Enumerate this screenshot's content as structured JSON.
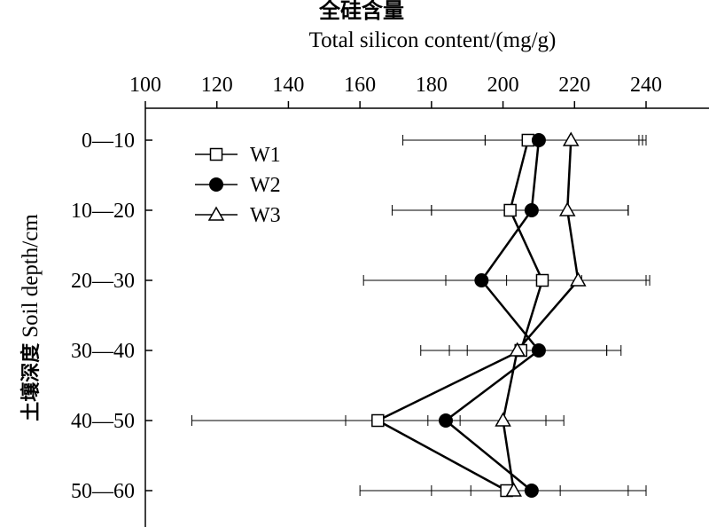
{
  "chart_data": {
    "type": "line",
    "title": "全硅含量",
    "xlabel": "Total silicon content/(mg/g)",
    "ylabel_cn": "土壤深度",
    "ylabel": "Soil depth/cm",
    "xlim": [
      100,
      250
    ],
    "xticks": [
      100,
      120,
      140,
      160,
      180,
      200,
      220,
      240
    ],
    "xtick_labels": [
      "100",
      "120",
      "140",
      "160",
      "180",
      "200",
      "220",
      "240"
    ],
    "categories": [
      "0—10",
      "10—20",
      "20—30",
      "30—40",
      "40—50",
      "50—60"
    ],
    "legend_position": "top-left",
    "grid": false,
    "series": [
      {
        "name": "W1",
        "marker": "open-square",
        "values": [
          207,
          202,
          211,
          205,
          165,
          201
        ],
        "err_low": [
          35,
          33,
          50,
          28,
          52,
          41
        ],
        "err_high": [
          31,
          33,
          29,
          24,
          23,
          34
        ]
      },
      {
        "name": "W2",
        "marker": "filled-circle",
        "values": [
          210,
          208,
          194,
          210,
          184,
          208
        ],
        "err_low": [
          15,
          28,
          10,
          20,
          28,
          28
        ],
        "err_high": [
          29,
          27,
          28,
          23,
          28,
          32
        ]
      },
      {
        "name": "W3",
        "marker": "open-triangle",
        "values": [
          219,
          218,
          221,
          204,
          200,
          203
        ],
        "err_low": [
          24,
          38,
          20,
          19,
          21,
          12
        ],
        "err_high": [
          21,
          17,
          20,
          25,
          17,
          13
        ]
      }
    ]
  }
}
